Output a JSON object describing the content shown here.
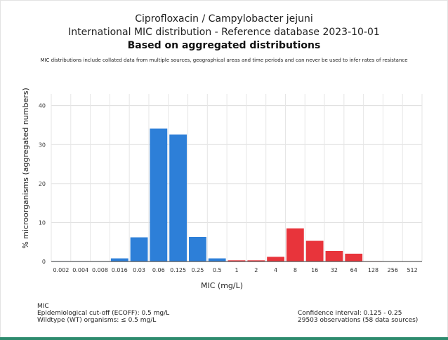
{
  "chart_data": {
    "type": "bar",
    "title_line1": "Ciprofloxacin / Campylobacter jejuni",
    "title_line2": "International MIC distribution - Reference database 2023-10-01",
    "title_line3": "Based on aggregated distributions",
    "subtitle": "MIC distributions include collated data from multiple sources, geographical areas and time periods and can never be used to infer rates of resistance",
    "xlabel": "MIC (mg/L)",
    "ylabel": "% microorganisms (aggregated numbers)",
    "ylim": [
      0,
      43
    ],
    "yticks": [
      0,
      10,
      20,
      30,
      40
    ],
    "grid": true,
    "categories": [
      "0.002",
      "0.004",
      "0.008",
      "0.016",
      "0.03",
      "0.06",
      "0.125",
      "0.25",
      "0.5",
      "1",
      "2",
      "4",
      "8",
      "16",
      "32",
      "64",
      "128",
      "256",
      "512"
    ],
    "values": [
      0.1,
      0.1,
      0.1,
      0.8,
      6.2,
      34.1,
      32.6,
      6.3,
      0.8,
      0.3,
      0.3,
      1.2,
      8.5,
      5.3,
      2.7,
      2.0,
      0.1,
      0.0,
      0.0
    ],
    "groups": [
      "wt",
      "wt",
      "wt",
      "wt",
      "wt",
      "wt",
      "wt",
      "wt",
      "wt",
      "nwt",
      "nwt",
      "nwt",
      "nwt",
      "nwt",
      "nwt",
      "nwt",
      "nwt",
      "nwt",
      "nwt"
    ],
    "colors": {
      "wt": "#2d7fd8",
      "nwt": "#e8343b"
    }
  },
  "notes": {
    "mic": "MIC",
    "ecoff": "Epidemiological cut-off (ECOFF): 0.5 mg/L",
    "wildtype": "Wildtype (WT) organisms: ≤ 0.5 mg/L",
    "confidence": "Confidence interval: 0.125 - 0.25",
    "observations": "29503 observations (58 data sources)"
  }
}
